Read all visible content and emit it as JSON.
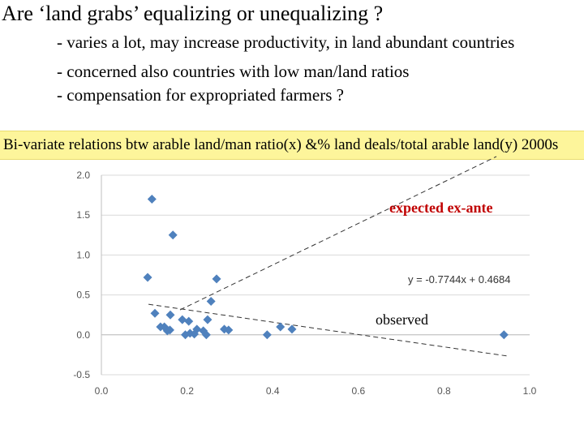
{
  "slide": {
    "title": "Are ‘land grabs’ equalizing or unequalizing ?",
    "bullets": [
      "- varies a lot, may increase productivity, in land abundant countries",
      "- concerned also countries with low man/land ratios",
      "- compensation for expropriated farmers ?"
    ],
    "banner_text": "Bi-variate relations btw arable land/man ratio(x) &% land deals/total arable land(y) 2000s",
    "banner_color": "#fdf59b"
  },
  "annotations": {
    "expected": "expected  ex-ante",
    "observed": "observed",
    "expected_color": "#c00000"
  },
  "chart_data": {
    "type": "scatter",
    "xlim": [
      0.0,
      1.0
    ],
    "ylim": [
      -0.5,
      2.0
    ],
    "x_ticks": [
      "0.0",
      "0.2",
      "0.4",
      "0.6",
      "0.8",
      "1.0"
    ],
    "y_ticks": [
      "2.0",
      "1.5",
      "1.0",
      "0.5",
      "0.0",
      "-0.5"
    ],
    "grid": "horizontal",
    "marker_color": "#4f81bd",
    "points": [
      {
        "x": 0.118,
        "y": 1.7
      },
      {
        "x": 0.167,
        "y": 1.25
      },
      {
        "x": 0.108,
        "y": 0.72
      },
      {
        "x": 0.269,
        "y": 0.7
      },
      {
        "x": 0.256,
        "y": 0.42
      },
      {
        "x": 0.125,
        "y": 0.27
      },
      {
        "x": 0.161,
        "y": 0.25
      },
      {
        "x": 0.248,
        "y": 0.19
      },
      {
        "x": 0.189,
        "y": 0.19
      },
      {
        "x": 0.204,
        "y": 0.17
      },
      {
        "x": 0.147,
        "y": 0.1
      },
      {
        "x": 0.138,
        "y": 0.1
      },
      {
        "x": 0.154,
        "y": 0.05
      },
      {
        "x": 0.16,
        "y": 0.06
      },
      {
        "x": 0.223,
        "y": 0.07
      },
      {
        "x": 0.238,
        "y": 0.05
      },
      {
        "x": 0.287,
        "y": 0.07
      },
      {
        "x": 0.297,
        "y": 0.06
      },
      {
        "x": 0.196,
        "y": 0.0
      },
      {
        "x": 0.207,
        "y": 0.02
      },
      {
        "x": 0.217,
        "y": 0.01
      },
      {
        "x": 0.245,
        "y": 0.0
      },
      {
        "x": 0.387,
        "y": 0.0
      },
      {
        "x": 0.418,
        "y": 0.1
      },
      {
        "x": 0.445,
        "y": 0.07
      },
      {
        "x": 0.94,
        "y": 0.0
      }
    ],
    "trendline": {
      "equation": "y = -0.7744x + 0.4684",
      "slope": -0.7744,
      "intercept": 0.4684,
      "x_range": [
        0.11,
        0.95
      ],
      "style": "dashed"
    }
  }
}
